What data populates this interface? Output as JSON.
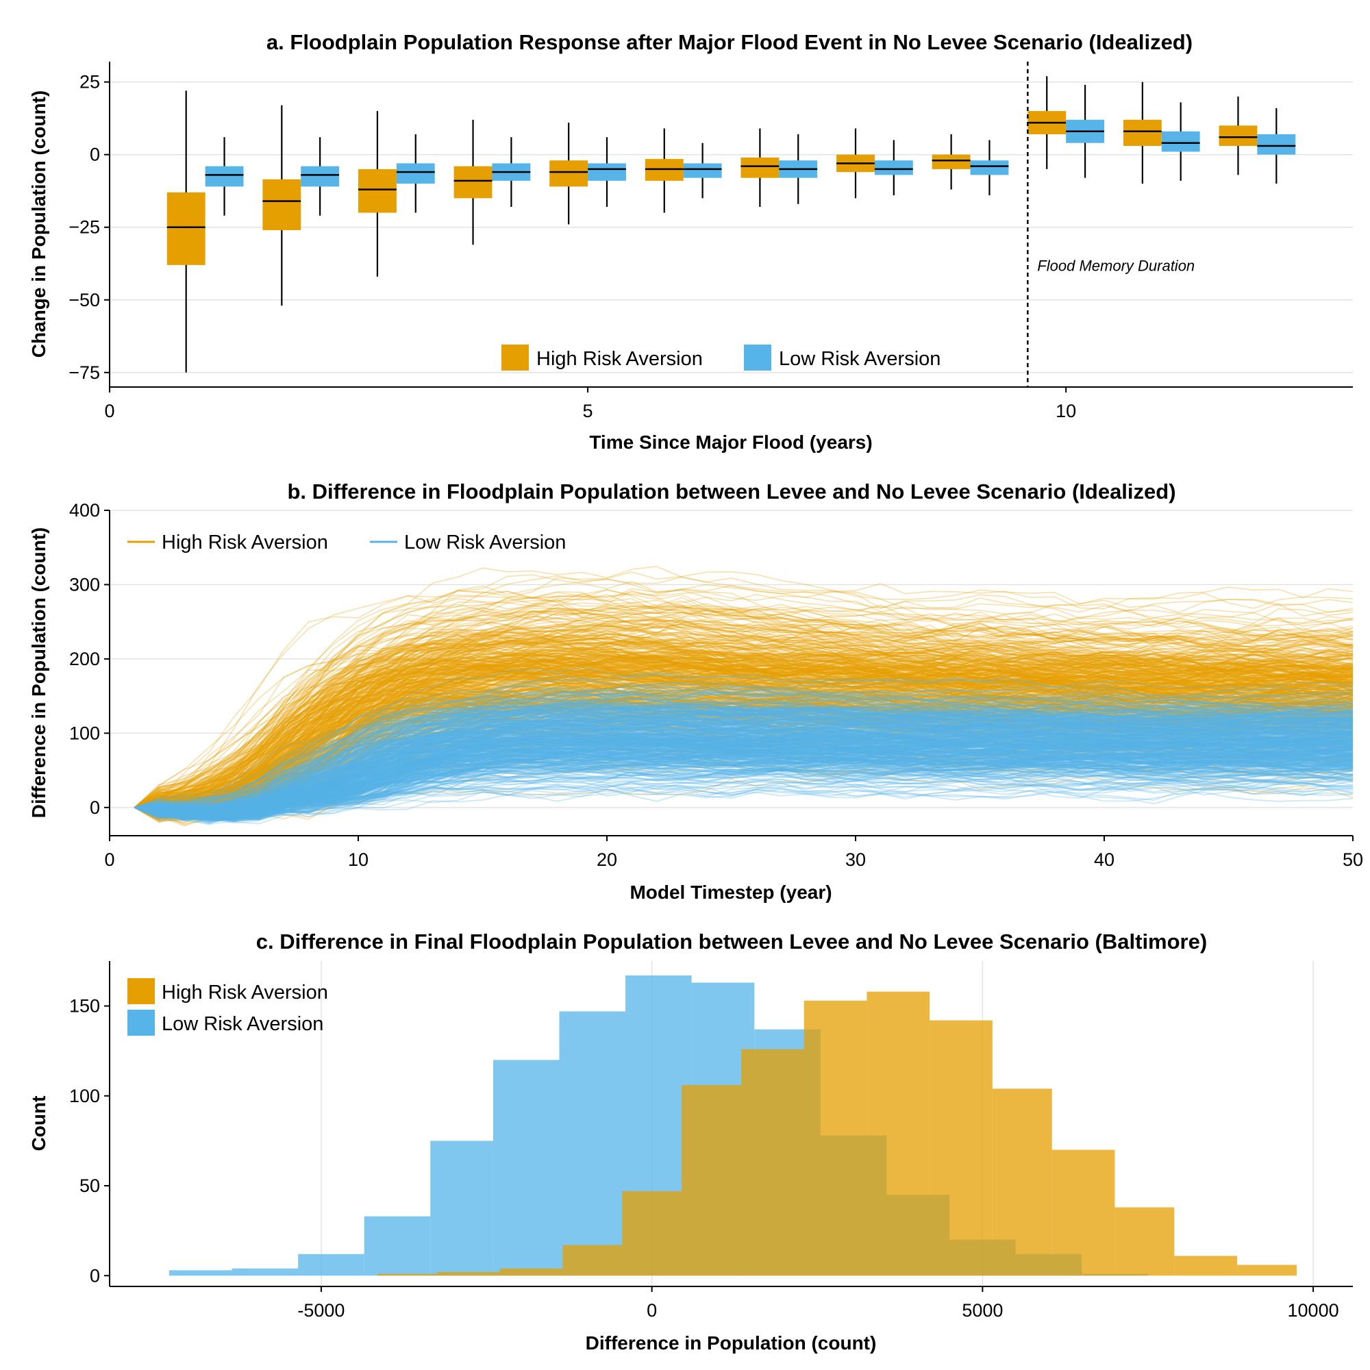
{
  "colors": {
    "high": "#E69F00",
    "low": "#56B4E9",
    "overlap": "#7FB3BD"
  },
  "legend": {
    "high": "High Risk Aversion",
    "low": "Low Risk Aversion"
  },
  "chart_data": [
    {
      "id": "a",
      "type": "box",
      "title": "a. Floodplain Population Response after Major Flood Event in No Levee Scenario (Idealized)",
      "xlabel": "Time Since Major Flood (years)",
      "ylabel": "Change in Population (count)",
      "xlim": [
        0,
        13
      ],
      "ylim": [
        -80,
        32
      ],
      "xticks": [
        0,
        5,
        10
      ],
      "yticks": [
        -75,
        -50,
        -25,
        0,
        25
      ],
      "ytick_labels": [
        "−75",
        "−50",
        "−25",
        "0",
        "25"
      ],
      "grid": true,
      "legend_position": "bottom-center",
      "vline": {
        "x": 9.6,
        "label": "Flood Memory Duration"
      },
      "series": [
        {
          "name": "High Risk Aversion",
          "color_key": "high",
          "boxes": [
            {
              "x": 1,
              "whislo": -75,
              "q1": -38,
              "med": -25,
              "q3": -13,
              "whishi": 22
            },
            {
              "x": 2,
              "whislo": -52,
              "q1": -26,
              "med": -16,
              "q3": -8.5,
              "whishi": 17
            },
            {
              "x": 3,
              "whislo": -42,
              "q1": -20,
              "med": -12,
              "q3": -5,
              "whishi": 15
            },
            {
              "x": 4,
              "whislo": -31,
              "q1": -15,
              "med": -9,
              "q3": -4,
              "whishi": 12
            },
            {
              "x": 5,
              "whislo": -24,
              "q1": -11,
              "med": -6,
              "q3": -2,
              "whishi": 11
            },
            {
              "x": 6,
              "whislo": -20,
              "q1": -9,
              "med": -5,
              "q3": -1.5,
              "whishi": 9
            },
            {
              "x": 7,
              "whislo": -18,
              "q1": -8,
              "med": -4,
              "q3": -1,
              "whishi": 9
            },
            {
              "x": 8,
              "whislo": -15,
              "q1": -6,
              "med": -3,
              "q3": 0,
              "whishi": 9
            },
            {
              "x": 9,
              "whislo": -12,
              "q1": -5,
              "med": -2,
              "q3": 0,
              "whishi": 7
            },
            {
              "x": 10,
              "whislo": -5,
              "q1": 7,
              "med": 11,
              "q3": 15,
              "whishi": 27
            },
            {
              "x": 11,
              "whislo": -10,
              "q1": 3,
              "med": 8,
              "q3": 12,
              "whishi": 25
            },
            {
              "x": 12,
              "whislo": -7,
              "q1": 3,
              "med": 6,
              "q3": 10,
              "whishi": 20
            }
          ]
        },
        {
          "name": "Low Risk Aversion",
          "color_key": "low",
          "boxes": [
            {
              "x": 1,
              "whislo": -21,
              "q1": -11,
              "med": -7,
              "q3": -4,
              "whishi": 6
            },
            {
              "x": 2,
              "whislo": -21,
              "q1": -11,
              "med": -7,
              "q3": -4,
              "whishi": 6
            },
            {
              "x": 3,
              "whislo": -20,
              "q1": -10,
              "med": -6,
              "q3": -3,
              "whishi": 7
            },
            {
              "x": 4,
              "whislo": -18,
              "q1": -9,
              "med": -6,
              "q3": -3,
              "whishi": 6
            },
            {
              "x": 5,
              "whislo": -18,
              "q1": -9,
              "med": -5,
              "q3": -3,
              "whishi": 6
            },
            {
              "x": 6,
              "whislo": -15,
              "q1": -8,
              "med": -5,
              "q3": -3,
              "whishi": 4
            },
            {
              "x": 7,
              "whislo": -17,
              "q1": -8,
              "med": -5,
              "q3": -2,
              "whishi": 7
            },
            {
              "x": 8,
              "whislo": -14,
              "q1": -7,
              "med": -5,
              "q3": -2,
              "whishi": 5
            },
            {
              "x": 9,
              "whislo": -14,
              "q1": -7,
              "med": -4,
              "q3": -2,
              "whishi": 5
            },
            {
              "x": 10,
              "whislo": -8,
              "q1": 4,
              "med": 8,
              "q3": 12,
              "whishi": 24
            },
            {
              "x": 11,
              "whislo": -9,
              "q1": 1,
              "med": 4,
              "q3": 8,
              "whishi": 18
            },
            {
              "x": 12,
              "whislo": -10,
              "q1": 0,
              "med": 3,
              "q3": 7,
              "whishi": 16
            }
          ]
        }
      ]
    },
    {
      "id": "b",
      "type": "line",
      "title": "b. Difference in Floodplain Population between Levee and No Levee Scenario (Idealized)",
      "xlabel": "Model Timestep (year)",
      "ylabel": "Difference in Population (count)",
      "xlim": [
        0,
        50
      ],
      "ylim": [
        -38,
        400
      ],
      "xticks": [
        0,
        10,
        20,
        30,
        40,
        50
      ],
      "yticks": [
        0,
        100,
        200,
        300,
        400
      ],
      "grid": true,
      "legend_position": "top-left",
      "x_range": [
        1,
        50
      ],
      "series": [
        {
          "name": "High Risk Aversion",
          "color_key": "high",
          "n_runs": 500,
          "final_value_range": [
            0,
            280
          ],
          "typical_final": 160,
          "rise_year": 8
        },
        {
          "name": "Low Risk Aversion",
          "color_key": "low",
          "n_runs": 500,
          "final_value_range": [
            20,
            165
          ],
          "typical_final": 85,
          "rise_year": 10
        }
      ]
    },
    {
      "id": "c",
      "type": "histogram",
      "title": "c. Difference in Final Floodplain Population between Levee and No Levee Scenario (Baltimore)",
      "xlabel": "Difference in Population (count)",
      "ylabel": "Count",
      "xlim": [
        -8200,
        10600
      ],
      "ylim": [
        -6,
        175
      ],
      "xticks": [
        -5000,
        0,
        5000,
        10000
      ],
      "yticks": [
        0,
        50,
        100,
        150
      ],
      "grid": true,
      "legend_position": "top-left",
      "series": [
        {
          "name": "Low Risk Aversion",
          "color_key": "low",
          "edges": [
            -7300,
            -6350,
            -5350,
            -4350,
            -3350,
            -2400,
            -1400,
            -400,
            600,
            1550,
            2550,
            3550,
            4500,
            5500,
            6500,
            7500
          ],
          "counts": [
            3,
            4,
            12,
            33,
            75,
            120,
            147,
            167,
            163,
            137,
            78,
            45,
            20,
            12,
            1
          ]
        },
        {
          "name": "High Risk Aversion",
          "color_key": "high",
          "edges": [
            -4150,
            -3250,
            -2300,
            -1350,
            -450,
            450,
            1350,
            2300,
            3250,
            4200,
            5150,
            6050,
            7000,
            7900,
            8850,
            9750
          ],
          "counts": [
            1,
            2,
            4,
            17,
            47,
            106,
            126,
            153,
            158,
            142,
            104,
            70,
            38,
            11,
            6
          ]
        }
      ]
    }
  ]
}
